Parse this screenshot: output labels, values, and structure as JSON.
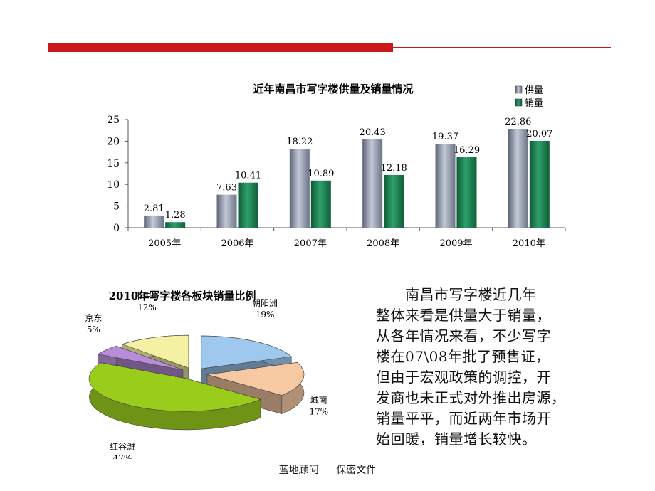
{
  "chart_data": [
    {
      "type": "bar",
      "title": "近年南昌市写字楼供量及销量情况",
      "categories": [
        "2005年",
        "2006年",
        "2007年",
        "2008年",
        "2009年",
        "2010年"
      ],
      "series": [
        {
          "name": "供量",
          "color": "#8a93a6",
          "values": [
            2.81,
            7.63,
            18.22,
            20.43,
            19.37,
            22.86
          ],
          "labels": [
            "2.81",
            "7.63",
            "18.22",
            "20.43",
            "19.37",
            "22.86"
          ]
        },
        {
          "name": "销量",
          "color": "#1e7a4e",
          "values": [
            1.28,
            10.41,
            10.89,
            12.18,
            16.29,
            20.07
          ],
          "labels": [
            "1.28",
            "10.41",
            "10.89",
            "12.18",
            "16.29",
            "20.07"
          ]
        }
      ],
      "yticks": [
        "0",
        "5",
        "10",
        "15",
        "20",
        "25"
      ],
      "ylim": [
        0,
        25
      ],
      "legend": "top-right",
      "grid": false
    },
    {
      "type": "pie",
      "title": "2010年写字楼各板块销量比例",
      "slices": [
        {
          "name": "朝阳洲",
          "value": 19,
          "label": "19%",
          "color": "#9ec8ee"
        },
        {
          "name": "城南",
          "value": 17,
          "label": "17%",
          "color": "#f6c9a3"
        },
        {
          "name": "红谷滩",
          "value": 47,
          "label": "47%",
          "color": "#9acc1c"
        },
        {
          "name": "京东",
          "value": 5,
          "label": "5%",
          "color": "#b78cd8"
        },
        {
          "name": "市中心",
          "value": 12,
          "label": "12%",
          "color": "#f5f1a3"
        }
      ],
      "style": "3d-exploded"
    }
  ],
  "body": {
    "lines": [
      "　　南昌市写字楼近几年",
      "整体来看是供量大于销量，",
      "从各年情况来看，不少写字",
      "楼在07\\08年批了预售证，",
      "但由于宏观政策的调控，开",
      "发商也未正式对外推出房源，",
      "销量平平，而近两年市场开",
      "始回暖，销量增长较快。"
    ]
  },
  "footer": {
    "left": "蓝地顾问",
    "right": "保密文件"
  },
  "colors": {
    "accent_red": "#cc1a1a"
  }
}
